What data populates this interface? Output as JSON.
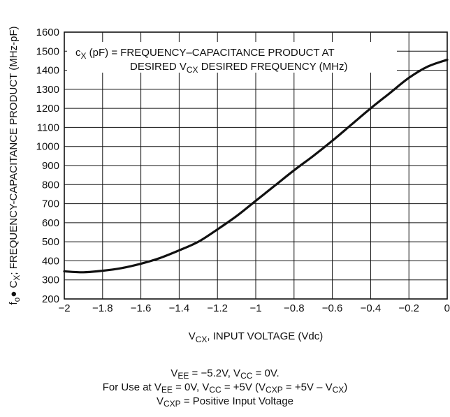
{
  "chart_data": {
    "type": "line",
    "x": [
      -2.0,
      -1.9,
      -1.8,
      -1.7,
      -1.6,
      -1.5,
      -1.4,
      -1.3,
      -1.2,
      -1.1,
      -1.0,
      -0.9,
      -0.8,
      -0.7,
      -0.6,
      -0.5,
      -0.4,
      -0.3,
      -0.2,
      -0.1,
      0.0
    ],
    "series": [
      {
        "values": [
          345,
          340,
          348,
          362,
          385,
          415,
          455,
          500,
          565,
          635,
          715,
          795,
          875,
          950,
          1030,
          1115,
          1200,
          1280,
          1360,
          1420,
          1455
        ]
      }
    ],
    "xlim": [
      -2,
      0
    ],
    "ylim": [
      200,
      1600
    ],
    "xticks": [
      -2,
      -1.8,
      -1.6,
      -1.4,
      -1.2,
      -1,
      -0.8,
      -0.6,
      -0.4,
      -0.2,
      0
    ],
    "xtick_labels": [
      "−2",
      "−1.8",
      "−1.6",
      "−1.4",
      "−1.2",
      "−1",
      "−0.8",
      "−0.6",
      "−0.4",
      "−0.2",
      "0"
    ],
    "yticks": [
      200,
      300,
      400,
      500,
      600,
      700,
      800,
      900,
      1000,
      1100,
      1200,
      1300,
      1400,
      1500,
      1600
    ],
    "ytick_labels": [
      "200",
      "300",
      "400",
      "500",
      "600",
      "700",
      "800",
      "900",
      "1000",
      "1100",
      "1200",
      "1300",
      "1400",
      "1500",
      "1600"
    ],
    "grid": true,
    "ylabel": {
      "prefix": "f",
      "prefix_sub": "o",
      "mid": "● C",
      "mid_sub": "X",
      "rest": "; FREQUENCY-CAPACITANCE PRODUCT (MHz-pF)"
    },
    "xlabel": {
      "prefix": "V",
      "sub": "CX",
      "rest": ", INPUT VOLTAGE (Vdc)"
    },
    "annotation": {
      "line1_prefix": "c",
      "line1_sub": "X",
      "line1_rest": " (pF) = FREQUENCY–CAPACITANCE PRODUCT AT",
      "line2_prefix": "DESIRED V",
      "line2_sub": "CX",
      "line2_rest": " DESIRED FREQUENCY (MHz)"
    }
  },
  "footnote": {
    "l1_a": "V",
    "l1_a_sub": "EE",
    "l1_b": " = −5.2V, V",
    "l1_b_sub": "CC",
    "l1_c": " = 0V.",
    "l2_a": "For Use at V",
    "l2_a_sub": "EE",
    "l2_b": " = 0V, V",
    "l2_b_sub": "CC",
    "l2_c": " = +5V (V",
    "l2_c_sub": "CXP",
    "l2_d": " = +5V – V",
    "l2_d_sub": "CX",
    "l2_e": ")",
    "l3_a": "V",
    "l3_a_sub": "CXP",
    "l3_b": " = Positive Input Voltage"
  }
}
